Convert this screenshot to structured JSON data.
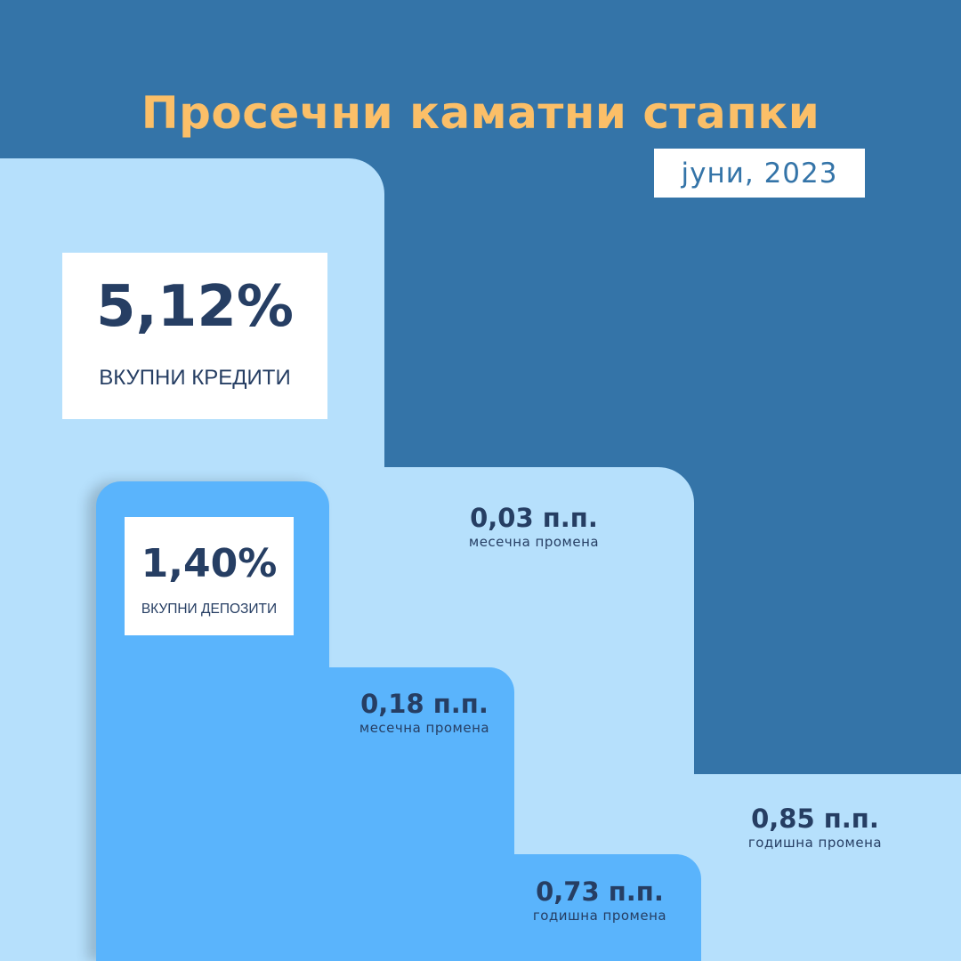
{
  "title": "Просечни каматни стапки",
  "date": "јуни, 2023",
  "colors": {
    "background": "#3474a8",
    "title": "#fbbf68",
    "loans_block": "#b6e0fc",
    "deposits_block": "#5ab4fc",
    "text": "#263e63"
  },
  "loans": {
    "value": "5,12%",
    "label": "ВКУПНИ КРЕДИТИ",
    "monthly_change": {
      "value": "0,03 п.п.",
      "label": "месечна промена"
    },
    "yearly_change": {
      "value": "0,85 п.п.",
      "label": "годишна промена"
    }
  },
  "deposits": {
    "value": "1,40%",
    "label": "ВКУПНИ ДЕПОЗИТИ",
    "monthly_change": {
      "value": "0,18 п.п.",
      "label": "месечна промена"
    },
    "yearly_change": {
      "value": "0,73 п.п.",
      "label": "годишна промена"
    }
  }
}
